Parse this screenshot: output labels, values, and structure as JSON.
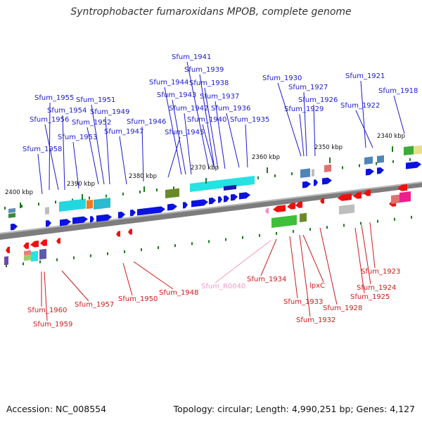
{
  "title": "Syntrophobacter fumaroxidans MPOB, complete genome",
  "accession_text": "Accession: NC_008554",
  "summary_text": "Topology: circular; Length: 4,990,251 bp; Genes: 4,127",
  "colors": {
    "forward_label": "#1a1acc",
    "reverse_label": "#cc1a1a",
    "rna_label": "#f09ac8",
    "forward_arrow": "#0b12e0",
    "reverse_arrow": "#ee1010",
    "tick": "#1b7a1b",
    "axis": "#7d7d7d"
  },
  "scale_ticks": [
    "2400 kbp",
    "2390 kbp",
    "2380 kbp",
    "2370 kbp",
    "2360 kbp",
    "2350 kbp",
    "2340 kbp"
  ],
  "top_labels": [
    "Sfum_1941",
    "Sfum_1939",
    "Sfum_1944",
    "Sfum_1938",
    "Sfum_1930",
    "Sfum_1921",
    "Sfum_1943",
    "Sfum_1937",
    "Sfum_1927",
    "Sfum_1918",
    "Sfum_1955",
    "Sfum_1951",
    "Sfum_1926",
    "Sfum_1942",
    "Sfum_1936",
    "Sfum_1922",
    "Sfum_1954",
    "Sfum_1949",
    "Sfum_1929",
    "Sfum_1956",
    "Sfum_1952",
    "Sfum_1940",
    "Sfum_1935",
    "Sfum_1946",
    "Sfum_1947",
    "Sfum_1945",
    "Sfum_1953",
    "Sfum_1958"
  ],
  "bottom_labels": [
    "Sfum_1934",
    "Sfum_R0040",
    "lpxC",
    "Sfum_1923",
    "Sfum_1948",
    "Sfum_1924",
    "Sfum_1950",
    "Sfum_1925",
    "Sfum_1957",
    "Sfum_1933",
    "Sfum_1928",
    "Sfum_1960",
    "Sfum_1932",
    "Sfum_1959"
  ]
}
